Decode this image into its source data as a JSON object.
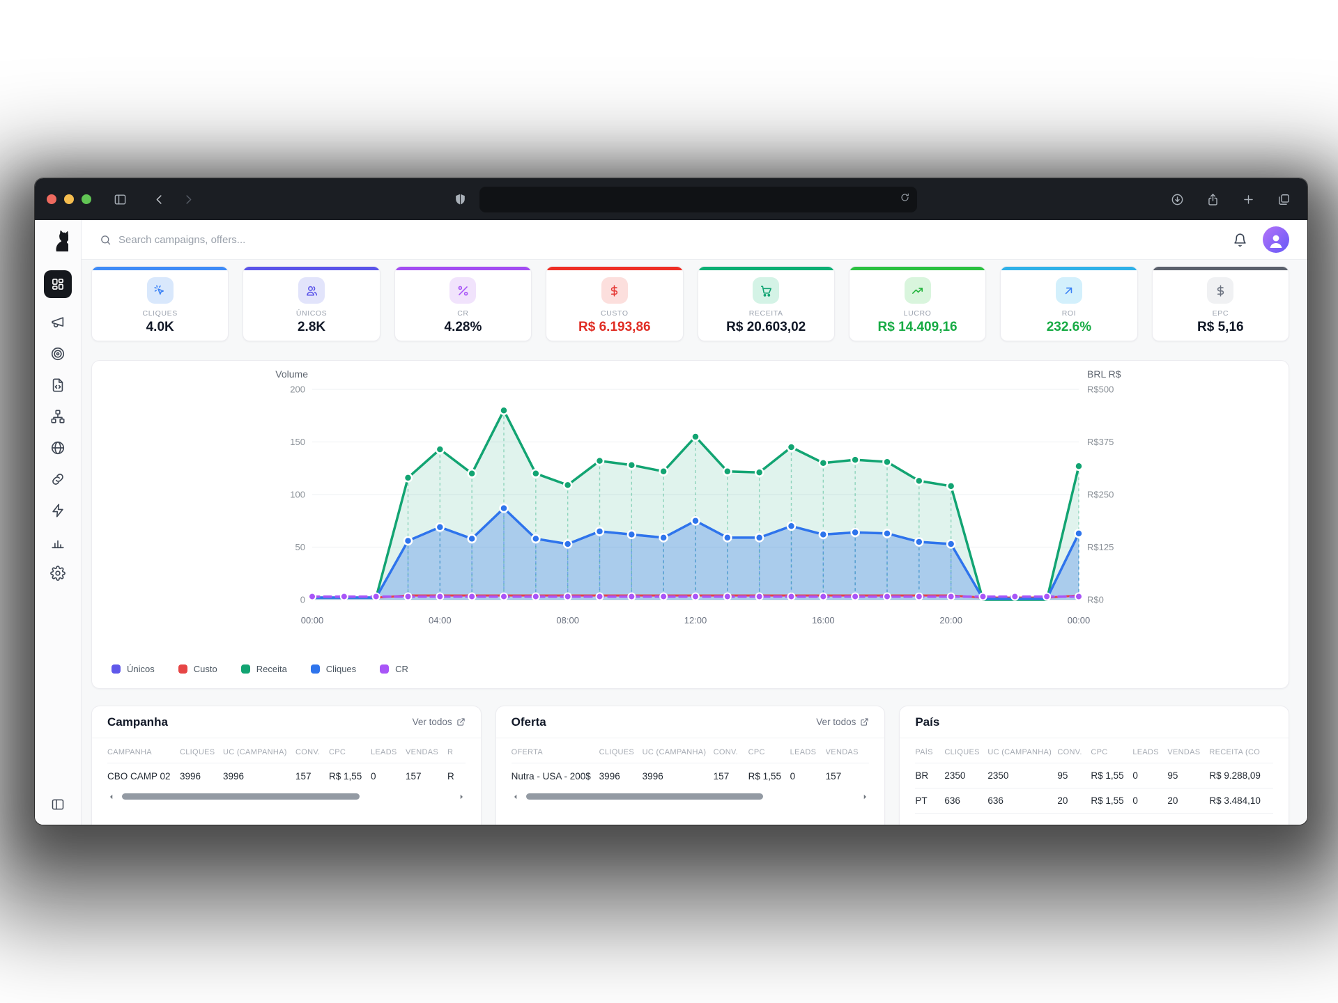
{
  "browser": {
    "traffic_lights": [
      "#ee6a5f",
      "#f5bd4f",
      "#61c554"
    ],
    "left_icons": [
      "panel-left-icon",
      "chevron-left-icon",
      "chevron-right-icon"
    ],
    "shield_icon": "shield-icon",
    "url_value": "",
    "reload_icon": "reload-icon",
    "right_icons": [
      "download-icon",
      "share-icon",
      "plus-icon",
      "tabs-icon"
    ]
  },
  "app": {
    "logo_icon": "dog-icon",
    "sidebar_icons": [
      "dashboard-icon",
      "megaphone-icon",
      "target-icon",
      "file-code-icon",
      "network-icon",
      "globe-icon",
      "link-icon",
      "zap-icon",
      "bar-chart-icon",
      "gear-icon"
    ],
    "sidebar_bottom_icon": "panel-left-icon",
    "header": {
      "search_icon": "search-icon",
      "search_placeholder": "Search campaigns, offers...",
      "bell_icon": "bell-icon",
      "avatar_icon": "user-icon"
    }
  },
  "kpi_cards": [
    {
      "label": "CLIQUES",
      "value": "4.0K",
      "accent": "#3e8bf7",
      "icon": "click-icon",
      "tint": "#d9e8fc",
      "icon_color": "#3b82f6",
      "value_color": "#111827"
    },
    {
      "label": "ÚNICOS",
      "value": "2.8K",
      "accent": "#5b55e9",
      "icon": "users-icon",
      "tint": "#e2e4fb",
      "icon_color": "#5b55e9",
      "value_color": "#111827"
    },
    {
      "label": "CR",
      "value": "4.28%",
      "accent": "#a34df2",
      "icon": "percent-icon",
      "tint": "#f1e3fc",
      "icon_color": "#a855f7",
      "value_color": "#111827"
    },
    {
      "label": "CUSTO",
      "value": "R$ 6.193,86",
      "accent": "#ee2e24",
      "icon": "dollar-icon",
      "tint": "#fcdfdd",
      "icon_color": "#e53935",
      "value_color": "#e02d24"
    },
    {
      "label": "RECEITA",
      "value": "R$ 20.603,02",
      "accent": "#0caf74",
      "icon": "cart-icon",
      "tint": "#d4f3e6",
      "icon_color": "#0fa371",
      "value_color": "#111827"
    },
    {
      "label": "LUCRO",
      "value": "R$ 14.409,16",
      "accent": "#2bc141",
      "icon": "trend-up-icon",
      "tint": "#d9f5dd",
      "icon_color": "#22b43c",
      "value_color": "#17ab44"
    },
    {
      "label": "ROI",
      "value": "232.6%",
      "accent": "#2fb1e8",
      "icon": "arrow-up-right-icon",
      "tint": "#d3f0fc",
      "icon_color": "#3b82f6",
      "value_color": "#17ab44"
    },
    {
      "label": "EPC",
      "value": "R$ 5,16",
      "accent": "#5b616c",
      "icon": "dollar-icon",
      "tint": "#f0f1f3",
      "icon_color": "#6b7280",
      "value_color": "#111827"
    }
  ],
  "chart_data": {
    "type": "area",
    "left_axis": {
      "title": "Volume",
      "ticks": [
        0,
        50,
        100,
        150,
        200
      ],
      "min": 0,
      "max": 200
    },
    "right_axis": {
      "title": "BRL R$",
      "tick_labels": [
        "R$0",
        "R$125",
        "R$250",
        "R$375",
        "R$500"
      ]
    },
    "x": [
      "00:00",
      "01:00",
      "02:00",
      "03:00",
      "04:00",
      "05:00",
      "06:00",
      "07:00",
      "08:00",
      "09:00",
      "10:00",
      "11:00",
      "12:00",
      "13:00",
      "14:00",
      "15:00",
      "16:00",
      "17:00",
      "18:00",
      "19:00",
      "20:00",
      "21:00",
      "22:00",
      "23:00",
      "00:00"
    ],
    "x_tick_every": 4,
    "series": [
      {
        "name": "Únicos",
        "color": "#5f58ea",
        "values": [
          2,
          2,
          2,
          56,
          69,
          58,
          87,
          58,
          53,
          65,
          62,
          59,
          75,
          59,
          59,
          70,
          62,
          64,
          63,
          55,
          53,
          1,
          1,
          1,
          63
        ]
      },
      {
        "name": "Custo",
        "color": "#e64545",
        "values": [
          2,
          2,
          2,
          4,
          4,
          4,
          4,
          4,
          4,
          4,
          4,
          4,
          4,
          4,
          4,
          4,
          4,
          4,
          4,
          4,
          4,
          2,
          2,
          2,
          4
        ]
      },
      {
        "name": "Receita",
        "color": "#12a472",
        "values": [
          2,
          2,
          2,
          116,
          143,
          120,
          180,
          120,
          109,
          132,
          128,
          122,
          155,
          122,
          121,
          145,
          130,
          133,
          131,
          113,
          108,
          0,
          0,
          0,
          127
        ],
        "fill": true
      },
      {
        "name": "Cliques",
        "color": "#2e74ec",
        "values": [
          2,
          2,
          2,
          56,
          69,
          58,
          87,
          58,
          53,
          65,
          62,
          59,
          75,
          59,
          59,
          70,
          62,
          64,
          63,
          55,
          53,
          1,
          1,
          1,
          63
        ],
        "fill": true
      },
      {
        "name": "CR",
        "color": "#a855f7",
        "values": [
          3,
          3,
          3,
          3,
          3,
          3,
          3,
          3,
          3,
          3,
          3,
          3,
          3,
          3,
          3,
          3,
          3,
          3,
          3,
          3,
          3,
          3,
          3,
          3,
          3
        ],
        "dashed": true
      }
    ],
    "legend": [
      {
        "label": "Únicos",
        "color": "#5f58ea"
      },
      {
        "label": "Custo",
        "color": "#e64545"
      },
      {
        "label": "Receita",
        "color": "#12a472"
      },
      {
        "label": "Cliques",
        "color": "#2e74ec"
      },
      {
        "label": "CR",
        "color": "#a855f7"
      }
    ],
    "grid": "horizontal"
  },
  "tables": [
    {
      "title": "Campanha",
      "link": "Ver todos",
      "columns": [
        "CAMPANHA",
        "CLIQUES",
        "UC (CAMPANHA)",
        "CONV.",
        "CPC",
        "LEADS",
        "VENDAS",
        "R"
      ],
      "rows": [
        [
          "CBO CAMP 02",
          "3996",
          "3996",
          "157",
          "R$ 1,55",
          "0",
          "157",
          "R"
        ]
      ],
      "scrollbar": true
    },
    {
      "title": "Oferta",
      "link": "Ver todos",
      "columns": [
        "OFERTA",
        "CLIQUES",
        "UC (CAMPANHA)",
        "CONV.",
        "CPC",
        "LEADS",
        "VENDAS"
      ],
      "rows": [
        [
          "Nutra - USA - 200$",
          "3996",
          "3996",
          "157",
          "R$ 1,55",
          "0",
          "157"
        ]
      ],
      "scrollbar": true
    },
    {
      "title": "País",
      "link": null,
      "columns": [
        "PAÍS",
        "CLIQUES",
        "UC (CAMPANHA)",
        "CONV.",
        "CPC",
        "LEADS",
        "VENDAS",
        "RECEITA (CO"
      ],
      "rows": [
        [
          "BR",
          "2350",
          "2350",
          "95",
          "R$ 1,55",
          "0",
          "95",
          "R$ 9.288,09"
        ],
        [
          "PT",
          "636",
          "636",
          "20",
          "R$ 1,55",
          "0",
          "20",
          "R$ 3.484,10"
        ]
      ],
      "scrollbar": false
    }
  ]
}
